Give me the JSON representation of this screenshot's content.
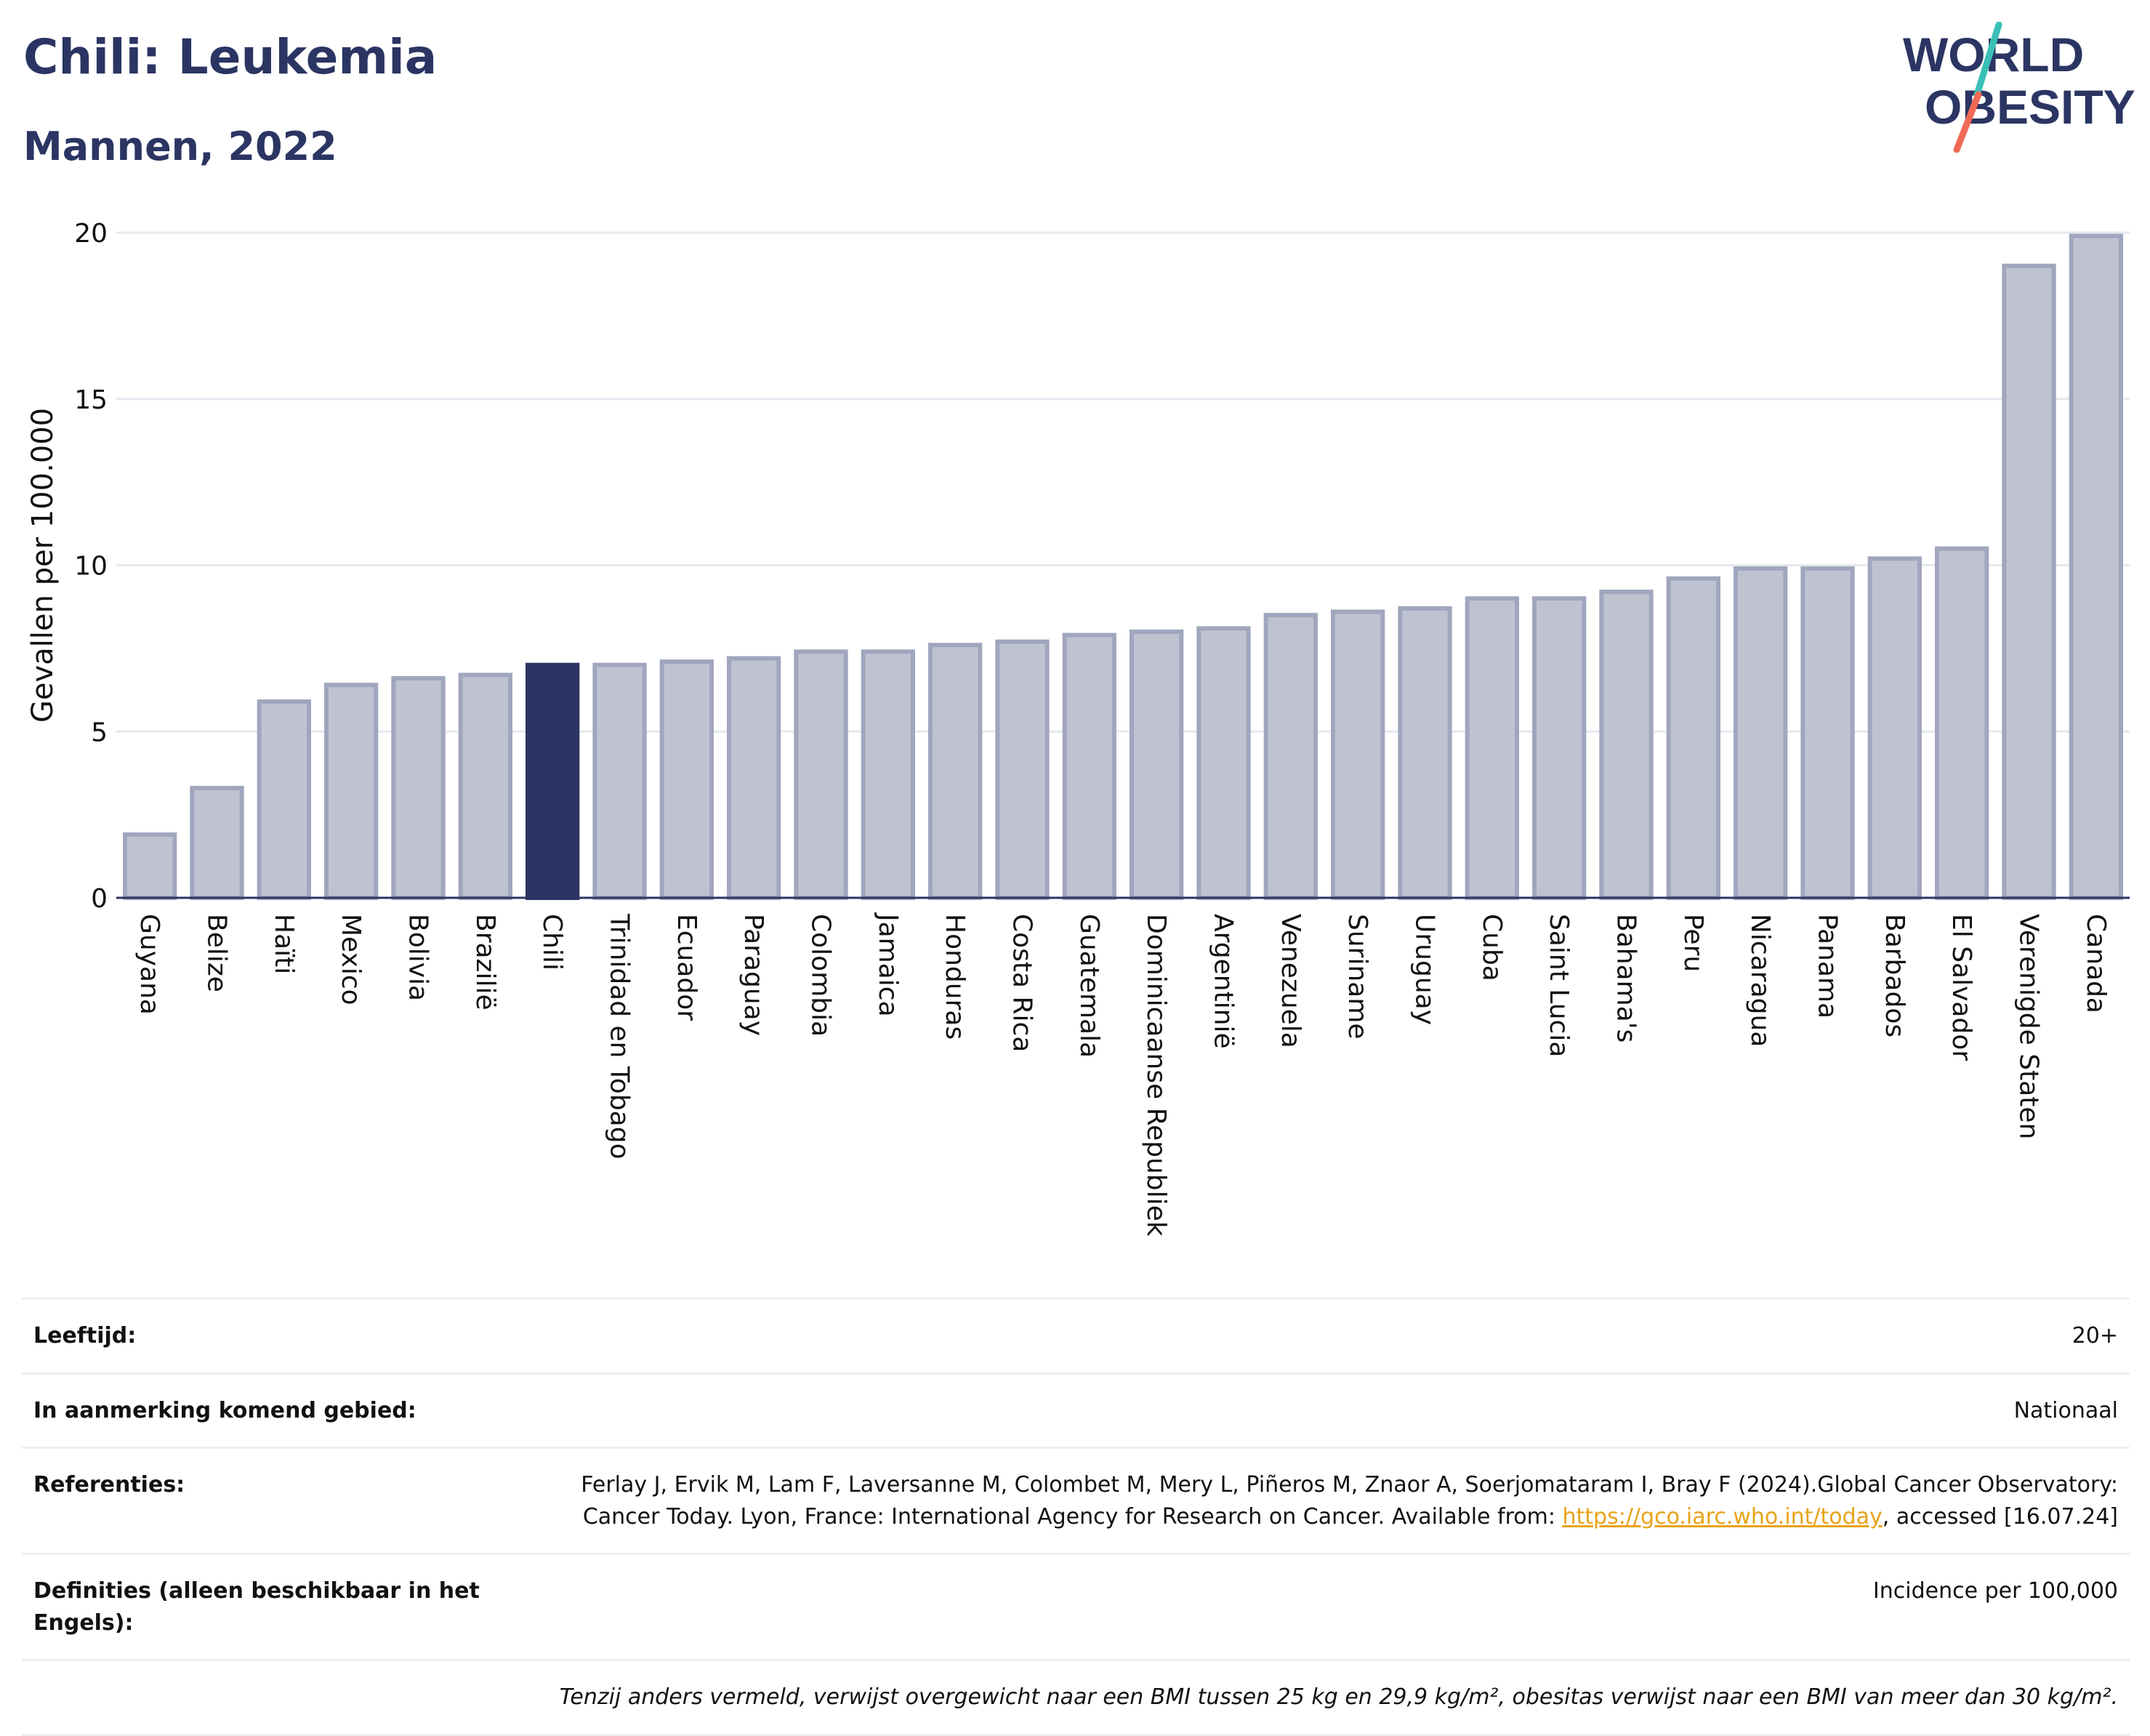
{
  "header": {
    "title": "Chili: Leukemia",
    "subtitle": "Mannen, 2022",
    "logo_line1": "WORLD",
    "logo_line2": "OBESITY"
  },
  "chart_data": {
    "type": "bar",
    "title": "Chili: Leukemia",
    "subtitle": "Mannen, 2022",
    "ylabel": "Gevallen per 100.000",
    "xlabel": "",
    "ylim": [
      0,
      20
    ],
    "yticks": [
      0,
      5,
      10,
      15,
      20
    ],
    "grid": true,
    "highlight": "Chili",
    "colors": {
      "bar": "#bfc3d1",
      "bar_border": "#a0a6bd",
      "highlight": "#2b3563",
      "grid": "#e6e8ef",
      "axis": "#2b3563"
    },
    "categories": [
      "Guyana",
      "Belize",
      "Haïti",
      "Mexico",
      "Bolivia",
      "Brazilië",
      "Chili",
      "Trinidad en Tobago",
      "Ecuador",
      "Paraguay",
      "Colombia",
      "Jamaica",
      "Honduras",
      "Costa Rica",
      "Guatemala",
      "Dominicaanse Republiek",
      "Argentinië",
      "Venezuela",
      "Suriname",
      "Uruguay",
      "Cuba",
      "Saint Lucia",
      "Bahama's",
      "Peru",
      "Nicaragua",
      "Panama",
      "Barbados",
      "El Salvador",
      "Verenigde Staten",
      "Canada"
    ],
    "values": [
      1.9,
      3.3,
      5.9,
      6.4,
      6.6,
      6.7,
      7.0,
      7.0,
      7.1,
      7.2,
      7.4,
      7.4,
      7.6,
      7.7,
      7.9,
      8.0,
      8.1,
      8.5,
      8.6,
      8.7,
      9.0,
      9.0,
      9.2,
      9.6,
      9.9,
      9.9,
      10.2,
      10.5,
      19.0,
      19.9
    ]
  },
  "meta": {
    "age_label": "Leeftijd:",
    "age_value": "20+",
    "area_label": "In aanmerking komend gebied:",
    "area_value": "Nationaal",
    "ref_label": "Referenties:",
    "ref_text": "Ferlay J, Ervik M, Lam F, Laversanne M, Colombet M, Mery L, Piñeros M, Znaor A, Soerjomataram I, Bray F (2024).Global Cancer Observatory: Cancer Today. Lyon, France: International Agency for Research on Cancer. Available from:",
    "ref_link": "https://gco.iarc.who.int/today",
    "ref_tail": ", accessed [16.07.24]",
    "def_label": "Definities (alleen beschikbaar in het Engels):",
    "def_value": "Incidence per 100,000",
    "note": "Tenzij anders vermeld, verwijst overgewicht naar een BMI tussen 25 kg en 29,9 kg/m², obesitas verwijst naar een BMI van meer dan 30 kg/m²."
  }
}
